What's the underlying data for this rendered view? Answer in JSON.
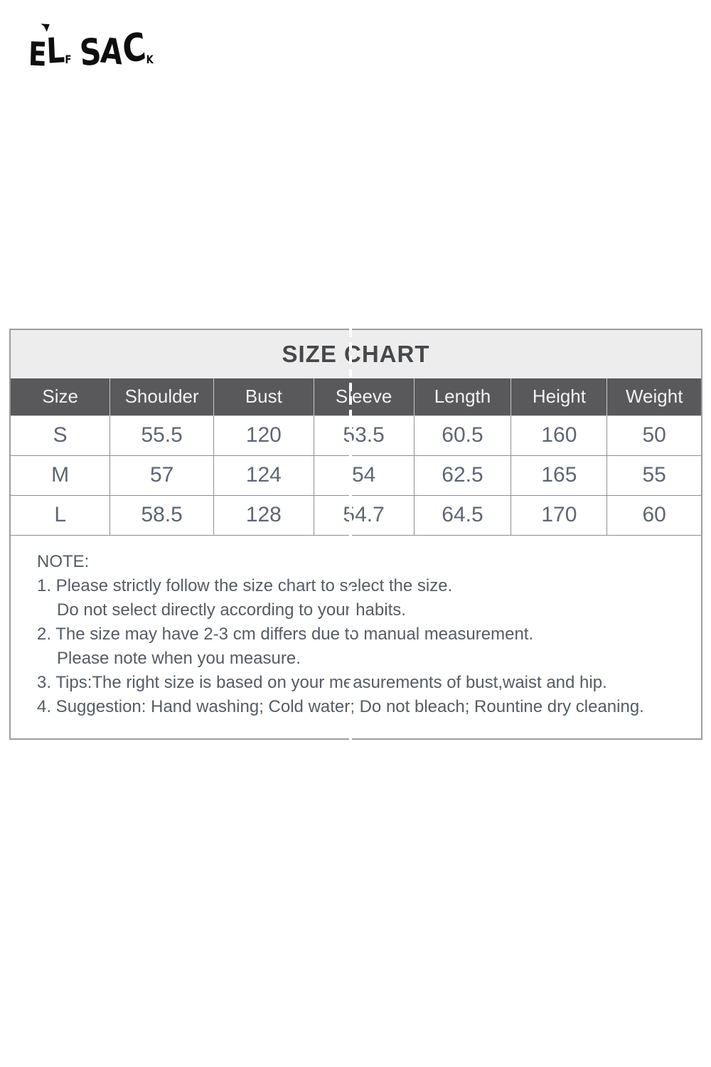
{
  "logo": {
    "text": "ELF SACK"
  },
  "size_chart": {
    "title": "SIZE CHART",
    "columns": [
      "Size",
      "Shoulder",
      "Bust",
      "Sleeve",
      "Length",
      "Height",
      "Weight"
    ],
    "column_widths_pct": [
      14.4,
      15.0,
      14.5,
      14.5,
      14.1,
      13.9,
      13.6
    ],
    "rows": [
      [
        "S",
        "55.5",
        "120",
        "53.5",
        "60.5",
        "160",
        "50"
      ],
      [
        "M",
        "57",
        "124",
        "54",
        "62.5",
        "165",
        "55"
      ],
      [
        "L",
        "58.5",
        "128",
        "54.7",
        "64.5",
        "170",
        "60"
      ]
    ]
  },
  "note": {
    "heading": "NOTE:",
    "lines": [
      {
        "text": "1. Please strictly follow the size chart to select the size.",
        "indent": false
      },
      {
        "text": "Do not select directly according to your habits.",
        "indent": true
      },
      {
        "text": "2. The size may have 2-3 cm differs due to manual measurement.",
        "indent": false
      },
      {
        "text": "Please note when you measure.",
        "indent": true
      },
      {
        "text": "3. Tips:The right size is based on your measurements of bust,waist and hip.",
        "indent": false
      },
      {
        "text": "4. Suggestion: Hand washing; Cold water; Do not bleach; Rountine dry cleaning.",
        "indent": false
      }
    ]
  },
  "colors": {
    "header_bg": "#59595b",
    "header_text": "#f2f2f2",
    "title_bg": "#ededed",
    "title_text": "#47484a",
    "cell_text": "#5f6673",
    "note_text": "#555c66",
    "border": "#8f8f8f",
    "logo": "#0e0e0e"
  }
}
